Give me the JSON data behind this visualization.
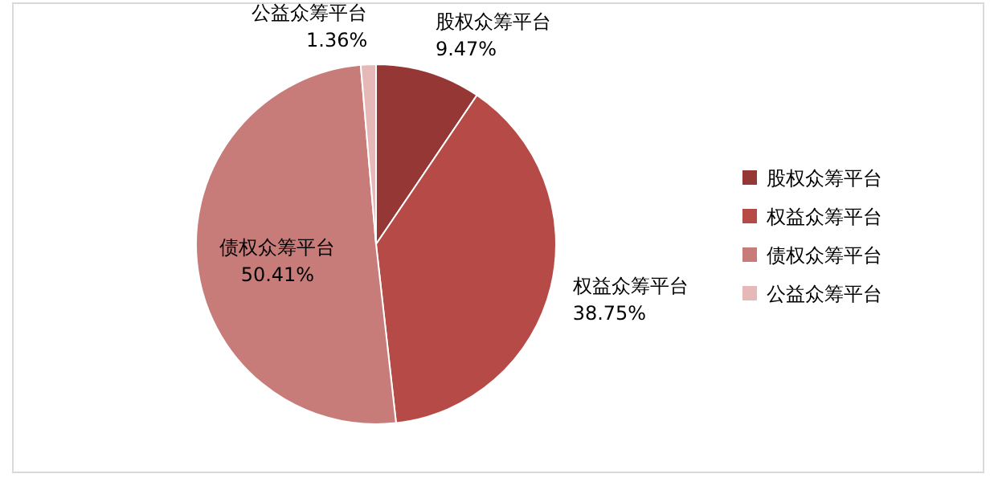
{
  "chart_data": {
    "type": "pie",
    "categories": [
      "股权众筹平台",
      "权益众筹平台",
      "债权众筹平台",
      "公益众筹平台"
    ],
    "values": [
      9.47,
      38.75,
      50.41,
      1.36
    ],
    "colors": [
      "#953735",
      "#b64a47",
      "#c77c7a",
      "#e6b9b8"
    ],
    "value_labels": [
      "9.47%",
      "38.75%",
      "50.41%",
      "1.36%"
    ],
    "legend": "right"
  }
}
